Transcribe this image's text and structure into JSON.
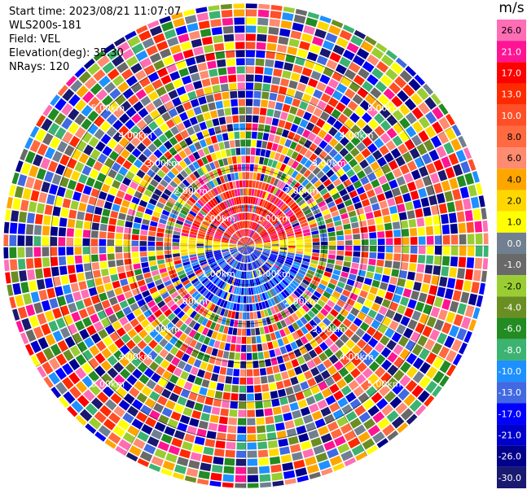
{
  "info": {
    "start_time": "Start time: 2023/08/21 11:07:07",
    "instrument": "WLS200s-181",
    "field": "Field: VEL",
    "elevation": "Elevation(deg): 35.30",
    "nrays": "NRays: 120"
  },
  "colorbar": {
    "unit": "m/s",
    "labels": [
      "26.0",
      "21.0",
      "17.0",
      "13.0",
      "10.0",
      "8.0",
      "6.0",
      "4.0",
      "2.0",
      "1.0",
      "0.0",
      "-1.0",
      "-2.0",
      "-4.0",
      "-6.0",
      "-8.0",
      "-10.0",
      "-13.0",
      "-17.0",
      "-21.0",
      "-26.0",
      "-30.0"
    ],
    "colors": [
      "#ff6eb4",
      "#ff1493",
      "#ff0000",
      "#ff2a00",
      "#ff4f28",
      "#ff6a40",
      "#ff8b70",
      "#ffa500",
      "#ffd700",
      "#ffff00",
      "#708090",
      "#696969",
      "#9acd32",
      "#6b8e23",
      "#228b22",
      "#3cb371",
      "#1e90ff",
      "#4169e1",
      "#0000ff",
      "#0000cd",
      "#00008b",
      "#191970"
    ]
  },
  "chart_data": {
    "type": "ppi",
    "field": "VEL",
    "units": "m/s",
    "nrays": 120,
    "range_rings_km": [
      1,
      2,
      3,
      4,
      5
    ],
    "ring_labels": [
      "1.00km",
      "2.00km",
      "3.00km",
      "4.00km",
      "5.00km"
    ],
    "max_range_km": 6.2,
    "value_range": [
      -30,
      26
    ],
    "patterns": {
      "north_sector_velocity": "positive 10-26 m/s",
      "south_sector_velocity": "negative -13 to -30 m/s"
    }
  }
}
